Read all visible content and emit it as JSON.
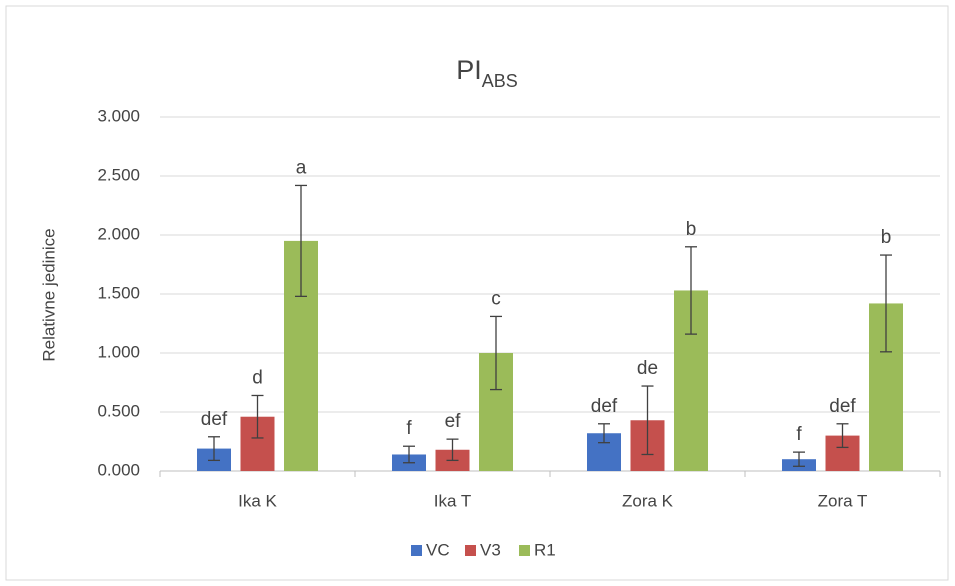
{
  "chart_data": {
    "type": "bar",
    "title": "PI",
    "title_subscript": "ABS",
    "y_label": "Relativne jedinice",
    "categories": [
      "Ika K",
      "Ika T",
      "Zora K",
      "Zora T"
    ],
    "series": [
      {
        "name": "VC",
        "color": "#4472c4",
        "values": [
          0.19,
          0.14,
          0.32,
          0.1
        ],
        "errors": [
          0.1,
          0.07,
          0.08,
          0.06
        ],
        "labels": [
          "def",
          "f",
          "def",
          "f"
        ]
      },
      {
        "name": "V3",
        "color": "#c5504d",
        "values": [
          0.46,
          0.18,
          0.43,
          0.3
        ],
        "errors": [
          0.18,
          0.09,
          0.29,
          0.1
        ],
        "labels": [
          "d",
          "ef",
          "de",
          "def"
        ]
      },
      {
        "name": "R1",
        "color": "#9bbb59",
        "values": [
          1.95,
          1.0,
          1.53,
          1.42
        ],
        "errors": [
          0.47,
          0.31,
          0.37,
          0.41
        ],
        "labels": [
          "a",
          "c",
          "b",
          "b"
        ]
      }
    ],
    "ylim": [
      0,
      3
    ],
    "yticks": [
      {
        "value": 0,
        "label": "0.000"
      },
      {
        "value": 0.5,
        "label": "0.500"
      },
      {
        "value": 1,
        "label": "1.000"
      },
      {
        "value": 1.5,
        "label": "1.500"
      },
      {
        "value": 2,
        "label": "2.000"
      },
      {
        "value": 2.5,
        "label": "2.500"
      },
      {
        "value": 3,
        "label": "3.000"
      }
    ],
    "grid": true,
    "legend": "bottom"
  }
}
